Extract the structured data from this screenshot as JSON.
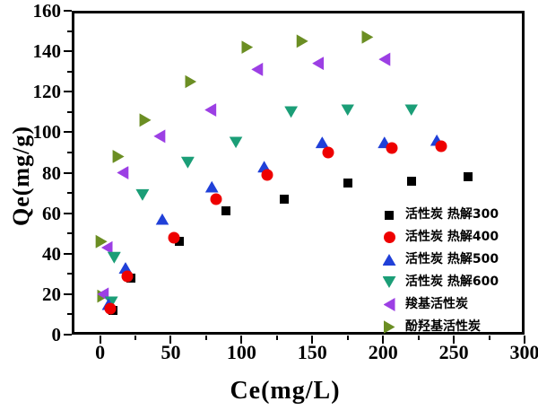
{
  "chart_data": {
    "type": "scatter",
    "title": "",
    "xlabel": "Ce(mg/L)",
    "ylabel": "Qe(mg/g)",
    "xlim": [
      -20,
      300
    ],
    "ylim": [
      0,
      160
    ],
    "grid": false,
    "legend_position": "inside-right-middle",
    "x_major_ticks": [
      0,
      50,
      100,
      150,
      200,
      250,
      300
    ],
    "x_minor_step": 25,
    "y_major_ticks": [
      0,
      20,
      40,
      60,
      80,
      100,
      120,
      140,
      160
    ],
    "y_minor_step": 10,
    "series": [
      {
        "name": "活性炭  热解300",
        "marker": "square",
        "color": "#000000",
        "points": [
          [
            9,
            12
          ],
          [
            22,
            28
          ],
          [
            56,
            46
          ],
          [
            89,
            61
          ],
          [
            130,
            67
          ],
          [
            175,
            75
          ],
          [
            220,
            76
          ],
          [
            260,
            78
          ]
        ]
      },
      {
        "name": "活性炭  热解400",
        "marker": "circle",
        "color": "#ee0000",
        "points": [
          [
            7,
            13
          ],
          [
            19,
            29
          ],
          [
            52,
            48
          ],
          [
            82,
            67
          ],
          [
            118,
            79
          ],
          [
            161,
            90
          ],
          [
            206,
            92
          ],
          [
            241,
            93
          ]
        ]
      },
      {
        "name": "活性炭  热解500",
        "marker": "triangle-up",
        "color": "#2040d8",
        "points": [
          [
            6,
            15
          ],
          [
            18,
            33
          ],
          [
            44,
            57
          ],
          [
            79,
            73
          ],
          [
            116,
            83
          ],
          [
            157,
            95
          ],
          [
            201,
            95
          ],
          [
            238,
            96
          ]
        ]
      },
      {
        "name": "活性炭  热解600",
        "marker": "triangle-down",
        "color": "#1b9e77",
        "points": [
          [
            8,
            16
          ],
          [
            10,
            38
          ],
          [
            30,
            69
          ],
          [
            62,
            85
          ],
          [
            96,
            95
          ],
          [
            135,
            110
          ],
          [
            175,
            111
          ],
          [
            220,
            111
          ]
        ]
      },
      {
        "name": "羧基活性炭",
        "marker": "triangle-left",
        "color": "#9c3fe4",
        "points": [
          [
            2,
            20
          ],
          [
            5,
            43
          ],
          [
            16,
            80
          ],
          [
            42,
            98
          ],
          [
            78,
            111
          ],
          [
            111,
            131
          ],
          [
            154,
            134
          ],
          [
            201,
            136
          ]
        ]
      },
      {
        "name": "酚羟基活性炭",
        "marker": "triangle-right",
        "color": "#6b8e23",
        "points": [
          [
            2,
            19
          ],
          [
            1,
            46
          ],
          [
            13,
            88
          ],
          [
            32,
            106
          ],
          [
            64,
            125
          ],
          [
            104,
            142
          ],
          [
            143,
            145
          ],
          [
            189,
            147
          ]
        ]
      }
    ]
  }
}
